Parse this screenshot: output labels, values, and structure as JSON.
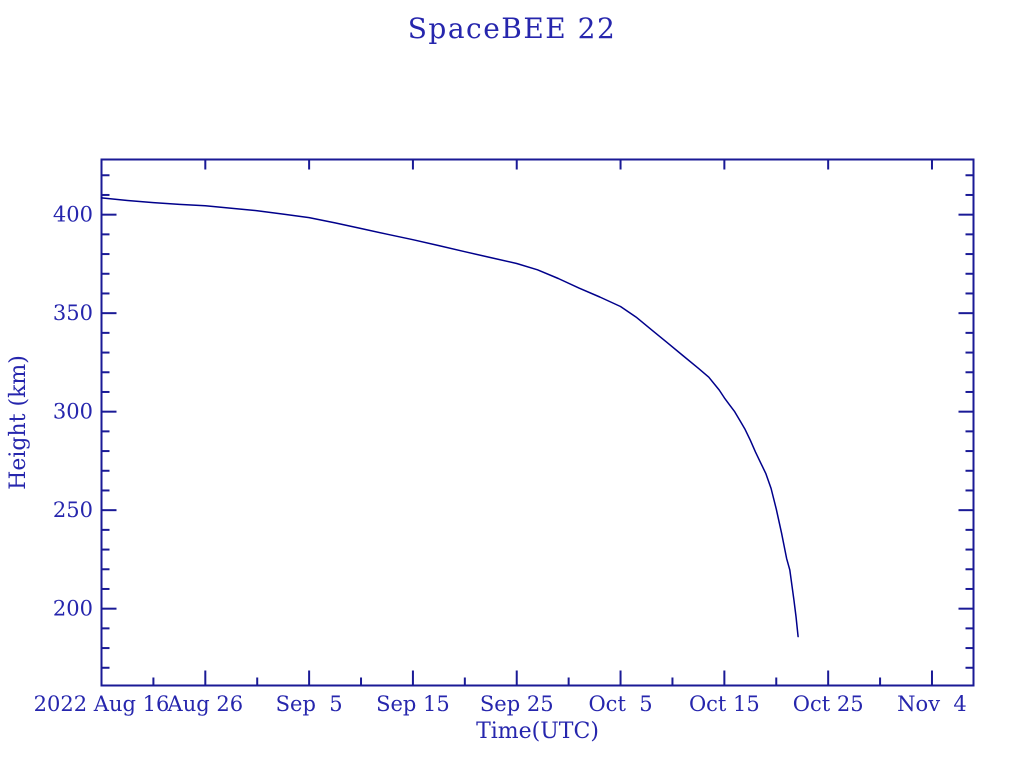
{
  "colors": {
    "background": "#ffffff",
    "text": "#2626ad",
    "axis": "#1a1a96",
    "curve": "#00008b"
  },
  "chart_data": {
    "type": "line",
    "title": "SpaceBEE 22",
    "xlabel": "Time(UTC)",
    "ylabel": "Height (km)",
    "grid": false,
    "legend": false,
    "x_tick_labels": [
      "2022 Aug 16",
      "Aug 26",
      "Sep  5",
      "Sep 15",
      "Sep 25",
      "Oct  5",
      "Oct 15",
      "Oct 25",
      "Nov  4"
    ],
    "x_major_ticks_days": [
      0,
      10,
      20,
      30,
      40,
      50,
      60,
      70,
      80
    ],
    "x_minor_tick_step_days": 5,
    "x_day_zero_label": "2022 Aug 16",
    "xlim_days": [
      0,
      84
    ],
    "y_major_ticks": [
      200,
      250,
      300,
      350,
      400
    ],
    "y_minor_tick_step": 10,
    "y_minor_tick_range": [
      170,
      420
    ],
    "ylim": [
      161,
      428
    ],
    "series": [
      {
        "name": "SpaceBEE 22",
        "color": "#00008b",
        "points_day_heightkm": [
          [
            0,
            408.5
          ],
          [
            2.5,
            407.2
          ],
          [
            5,
            406.1
          ],
          [
            7.5,
            405.2
          ],
          [
            10,
            404.5
          ],
          [
            12.5,
            403.3
          ],
          [
            15,
            402.0
          ],
          [
            17.5,
            400.3
          ],
          [
            20,
            398.5
          ],
          [
            22.5,
            395.8
          ],
          [
            25,
            393.0
          ],
          [
            27.5,
            390.1
          ],
          [
            30,
            387.3
          ],
          [
            32.5,
            384.3
          ],
          [
            35,
            381.2
          ],
          [
            37.5,
            378.2
          ],
          [
            40,
            375.2
          ],
          [
            42,
            372.0
          ],
          [
            44,
            367.6
          ],
          [
            46,
            362.7
          ],
          [
            48,
            358.2
          ],
          [
            50,
            353.4
          ],
          [
            51.5,
            348.0
          ],
          [
            53,
            341.5
          ],
          [
            54.5,
            335.0
          ],
          [
            56,
            328.5
          ],
          [
            57.5,
            322.0
          ],
          [
            58.5,
            317.5
          ],
          [
            59.5,
            311.0
          ],
          [
            60,
            307.0
          ],
          [
            60.5,
            303.5
          ],
          [
            61,
            300.0
          ],
          [
            61.5,
            295.5
          ],
          [
            62,
            291.0
          ],
          [
            62.5,
            285.5
          ],
          [
            63,
            279.5
          ],
          [
            63.5,
            274.0
          ],
          [
            64,
            268.5
          ],
          [
            64.5,
            261.0
          ],
          [
            65,
            250.5
          ],
          [
            65.5,
            238.5
          ],
          [
            66,
            225.5
          ],
          [
            66.3,
            219.7
          ],
          [
            66.7,
            204.5
          ],
          [
            66.9,
            196.0
          ],
          [
            67.1,
            185.8
          ]
        ]
      }
    ]
  }
}
